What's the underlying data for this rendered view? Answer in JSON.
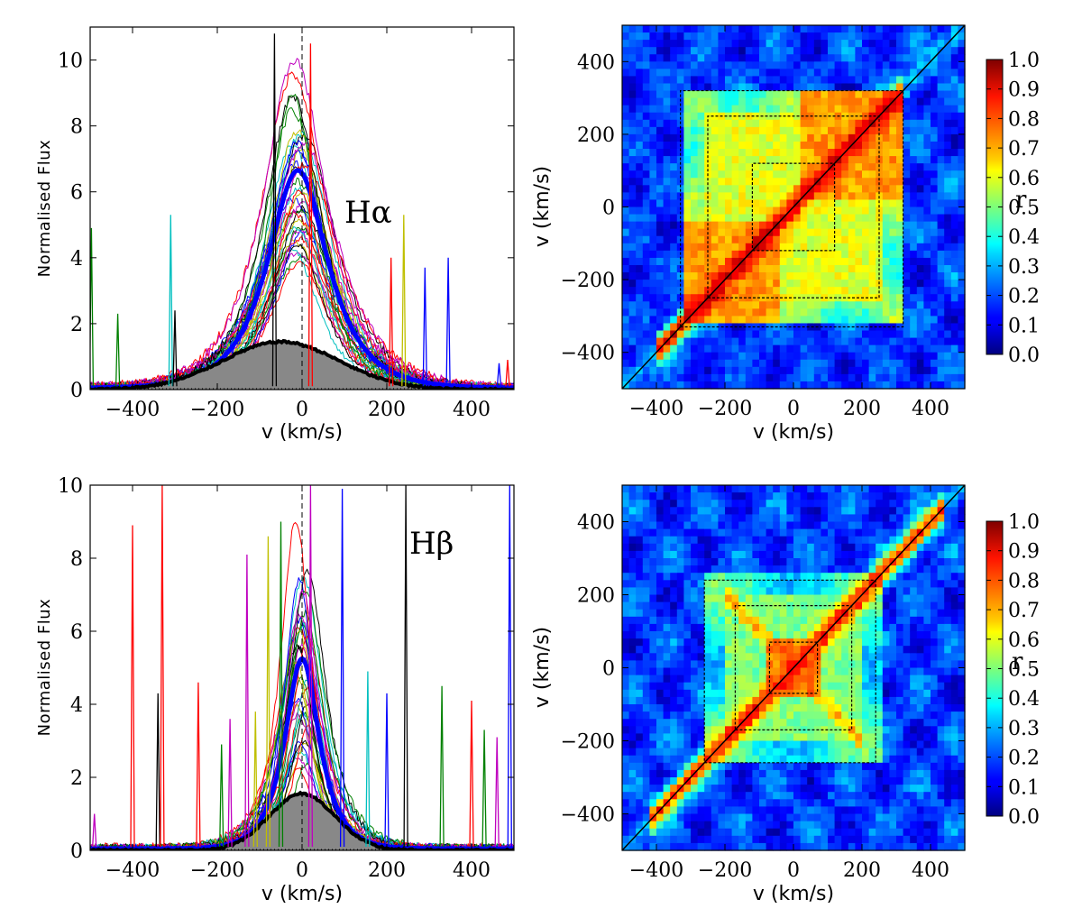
{
  "chart_data": [
    {
      "type": "line",
      "panel": "top-left",
      "annotation": "Hα",
      "xlabel": "v (km/s)",
      "ylabel": "Normalised  Flux",
      "xlim": [
        -500,
        500
      ],
      "ylim": [
        0,
        11
      ],
      "xticks": [
        -400,
        -200,
        0,
        200,
        400
      ],
      "yticks": [
        0,
        2,
        4,
        6,
        8,
        10
      ],
      "xtick_labels": [
        "−400",
        "−200",
        "0",
        "200",
        "400"
      ],
      "ytick_labels": [
        "0",
        "2",
        "4",
        "6",
        "8",
        "10"
      ],
      "profile": {
        "peak_min": 3.8,
        "peak_max": 10.0,
        "peak_v": -10,
        "mean_peak": 6.6,
        "width": 105
      },
      "mean_profile": {
        "peak": 1.45,
        "peak_v": -50,
        "width": 150
      },
      "rms_profile": {
        "name": "grey filled profile",
        "peak": 1.45
      },
      "spikes": [
        {
          "v": -497,
          "h": 4.9,
          "color": "#008000"
        },
        {
          "v": -435,
          "h": 2.3,
          "color": "#008000"
        },
        {
          "v": -310,
          "h": 5.3,
          "color": "#00bfbf"
        },
        {
          "v": -300,
          "h": 2.4,
          "color": "#000000"
        },
        {
          "v": -65,
          "h": 10.8,
          "color": "#000000"
        },
        {
          "v": 20,
          "h": 10.5,
          "color": "#ff0000"
        },
        {
          "v": 210,
          "h": 4.0,
          "color": "#ff0000"
        },
        {
          "v": 240,
          "h": 5.3,
          "color": "#bfbf00"
        },
        {
          "v": 290,
          "h": 3.7,
          "color": "#0000ff"
        },
        {
          "v": 345,
          "h": 4.0,
          "color": "#0000ff"
        },
        {
          "v": 465,
          "h": 0.8,
          "color": "#0000ff"
        },
        {
          "v": 485,
          "h": 0.9,
          "color": "#ff0000"
        }
      ]
    },
    {
      "type": "heatmap",
      "panel": "top-right",
      "xlabel": "v (km/s)",
      "ylabel": "v (km/s)",
      "xlim": [
        -500,
        500
      ],
      "ylim": [
        -500,
        500
      ],
      "xticks": [
        -400,
        -200,
        0,
        200,
        400
      ],
      "yticks": [
        -400,
        -200,
        0,
        200,
        400
      ],
      "xtick_labels": [
        "−400",
        "−200",
        "0",
        "200",
        "400"
      ],
      "ytick_labels": [
        "−400",
        "−200",
        "0",
        "200",
        "400"
      ],
      "colorbar": {
        "label": "r",
        "range": [
          0.0,
          1.0
        ],
        "ticks": [
          "0.0",
          "0.1",
          "0.2",
          "0.3",
          "0.4",
          "0.5",
          "0.6",
          "0.7",
          "0.8",
          "0.9",
          "1.0"
        ]
      },
      "structure": "high correlation (r~0.8-0.9) along diagonal from -400 to 300 km/s; orange blocks where |v|<250 for both axes; low (r~0.1) outside 350 km/s"
    },
    {
      "type": "line",
      "panel": "bottom-left",
      "annotation": "Hβ",
      "xlabel": "v (km/s)",
      "ylabel": "Normalised  Flux",
      "xlim": [
        -500,
        500
      ],
      "ylim": [
        0,
        10
      ],
      "xticks": [
        -400,
        -200,
        0,
        200,
        400
      ],
      "yticks": [
        0,
        2,
        4,
        6,
        8,
        10
      ],
      "xtick_labels": [
        "−400",
        "−200",
        "0",
        "200",
        "400"
      ],
      "ytick_labels": [
        "0",
        "2",
        "4",
        "6",
        "8",
        "10"
      ],
      "profile": {
        "peak_min": 2.2,
        "peak_max": 9.4,
        "peak_v": 0,
        "mean_peak": 5.2,
        "width": 60
      },
      "mean_profile": {
        "peak": 1.55,
        "peak_v": 0,
        "width": 85
      },
      "rms_profile": {
        "name": "grey filled profile",
        "peak": 1.55
      },
      "spikes": [
        {
          "v": -490,
          "h": 1.0,
          "color": "#bf00bf"
        },
        {
          "v": -400,
          "h": 8.9,
          "color": "#ff0000"
        },
        {
          "v": -340,
          "h": 4.3,
          "color": "#000000"
        },
        {
          "v": -330,
          "h": 10.0,
          "color": "#ff0000"
        },
        {
          "v": -245,
          "h": 4.6,
          "color": "#ff0000"
        },
        {
          "v": -190,
          "h": 2.9,
          "color": "#008000"
        },
        {
          "v": -170,
          "h": 3.6,
          "color": "#bf00bf"
        },
        {
          "v": -130,
          "h": 8.1,
          "color": "#bf00bf"
        },
        {
          "v": -110,
          "h": 3.8,
          "color": "#bfbf00"
        },
        {
          "v": -80,
          "h": 8.6,
          "color": "#bfbf00"
        },
        {
          "v": -50,
          "h": 9.0,
          "color": "#008000"
        },
        {
          "v": 20,
          "h": 10.0,
          "color": "#bf00bf"
        },
        {
          "v": 95,
          "h": 9.9,
          "color": "#0000ff"
        },
        {
          "v": 155,
          "h": 4.9,
          "color": "#00bfbf"
        },
        {
          "v": 200,
          "h": 4.3,
          "color": "#0000ff"
        },
        {
          "v": 245,
          "h": 10.0,
          "color": "#000000"
        },
        {
          "v": 330,
          "h": 4.5,
          "color": "#008000"
        },
        {
          "v": 400,
          "h": 4.1,
          "color": "#ff0000"
        },
        {
          "v": 430,
          "h": 3.3,
          "color": "#008000"
        },
        {
          "v": 460,
          "h": 3.1,
          "color": "#bf00bf"
        },
        {
          "v": 490,
          "h": 10.0,
          "color": "#0000ff"
        }
      ]
    },
    {
      "type": "heatmap",
      "panel": "bottom-right",
      "xlabel": "v (km/s)",
      "ylabel": "v (km/s)",
      "xlim": [
        -500,
        500
      ],
      "ylim": [
        -500,
        500
      ],
      "xticks": [
        -400,
        -200,
        0,
        200,
        400
      ],
      "yticks": [
        -400,
        -200,
        0,
        200,
        400
      ],
      "xtick_labels": [
        "−400",
        "−200",
        "0",
        "200",
        "400"
      ],
      "ytick_labels": [
        "−400",
        "−200",
        "0",
        "200",
        "400"
      ],
      "colorbar": {
        "label": "r",
        "range": [
          0.0,
          1.0
        ],
        "ticks": [
          "0.0",
          "0.1",
          "0.2",
          "0.3",
          "0.4",
          "0.5",
          "0.6",
          "0.7",
          "0.8",
          "0.9",
          "1.0"
        ]
      },
      "structure": "narrow X-shaped high-correlation core (r~0.8) centred at 0 km/s plus diagonal; low (r~0.1) outside 250 km/s"
    }
  ],
  "colors": {
    "spectra": [
      "#ff0000",
      "#008000",
      "#bf00bf",
      "#00bfbf",
      "#bfbf00",
      "#000000",
      "#0000ff"
    ],
    "mean_line": "#0000ff",
    "rms_fill": "#888888",
    "rms_line": "#000000"
  }
}
